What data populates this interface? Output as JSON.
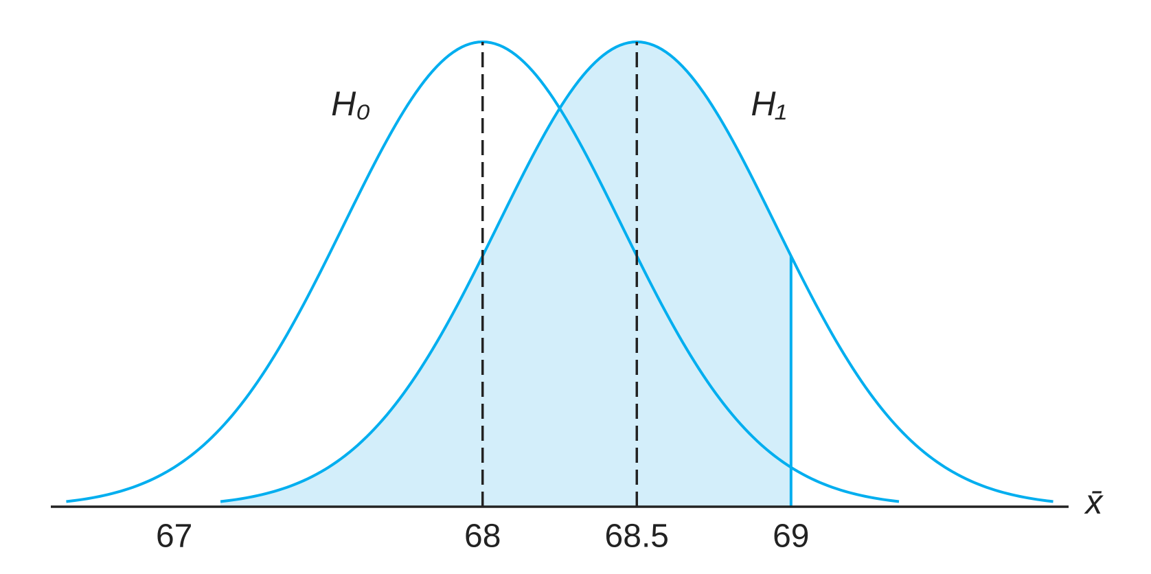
{
  "chart_data": {
    "type": "normal",
    "series": [
      {
        "name": "H₀",
        "color": "#00aeef",
        "mean": 68,
        "sd": 0.45
      },
      {
        "name": "H₁",
        "color": "#00aeef",
        "mean": 68.5,
        "sd": 0.45
      }
    ],
    "range_sd": 3,
    "shade": {
      "series": 1,
      "to": 69,
      "color": "#d3eefa"
    },
    "mean_lines": true,
    "xlabel": "x̄",
    "xlim": [
      66.6,
      69.9
    ],
    "xticks": [
      67,
      68,
      68.5,
      69
    ]
  }
}
